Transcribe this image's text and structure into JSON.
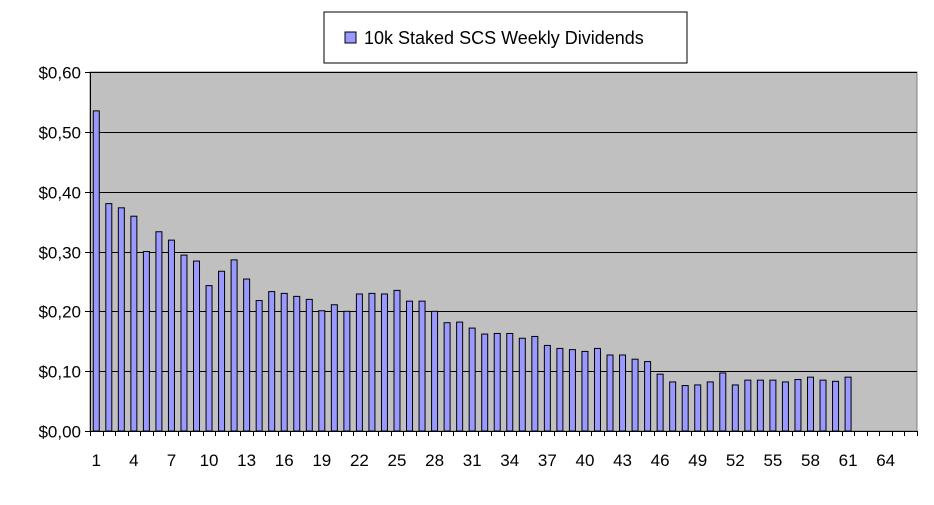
{
  "chart_data": {
    "type": "bar",
    "series": [
      {
        "name": "10k Staked SCS Weekly Dividends",
        "color": "#9999ff",
        "values": [
          0.535,
          0.38,
          0.373,
          0.359,
          0.3,
          0.333,
          0.319,
          0.294,
          0.284,
          0.243,
          0.267,
          0.286,
          0.254,
          0.218,
          0.233,
          0.23,
          0.225,
          0.22,
          0.201,
          0.211,
          0.2,
          0.229,
          0.23,
          0.229,
          0.235,
          0.217,
          0.217,
          0.2,
          0.181,
          0.182,
          0.172,
          0.162,
          0.163,
          0.163,
          0.155,
          0.158,
          0.143,
          0.138,
          0.136,
          0.133,
          0.138,
          0.127,
          0.127,
          0.12,
          0.116,
          0.095,
          0.082,
          0.076,
          0.077,
          0.082,
          0.097,
          0.077,
          0.085,
          0.085,
          0.085,
          0.082,
          0.086,
          0.09,
          0.085,
          0.083,
          0.09
        ]
      }
    ],
    "x_tick_labels": [
      "1",
      "4",
      "7",
      "10",
      "13",
      "16",
      "19",
      "22",
      "25",
      "28",
      "31",
      "34",
      "37",
      "40",
      "43",
      "46",
      "49",
      "52",
      "55",
      "58",
      "61",
      "64"
    ],
    "y_tick_labels": [
      "$0,00",
      "$0,10",
      "$0,20",
      "$0,30",
      "$0,40",
      "$0,50",
      "$0,60"
    ],
    "ylim": [
      0,
      0.6
    ],
    "y_ticks": [
      0,
      0.1,
      0.2,
      0.3,
      0.4,
      0.5,
      0.6
    ],
    "x_slots": 66,
    "x_label_step": 3,
    "title": "",
    "xlabel": "",
    "ylabel": "",
    "grid": true,
    "legend_position": "top",
    "plot_background": "#c0c0c0"
  }
}
